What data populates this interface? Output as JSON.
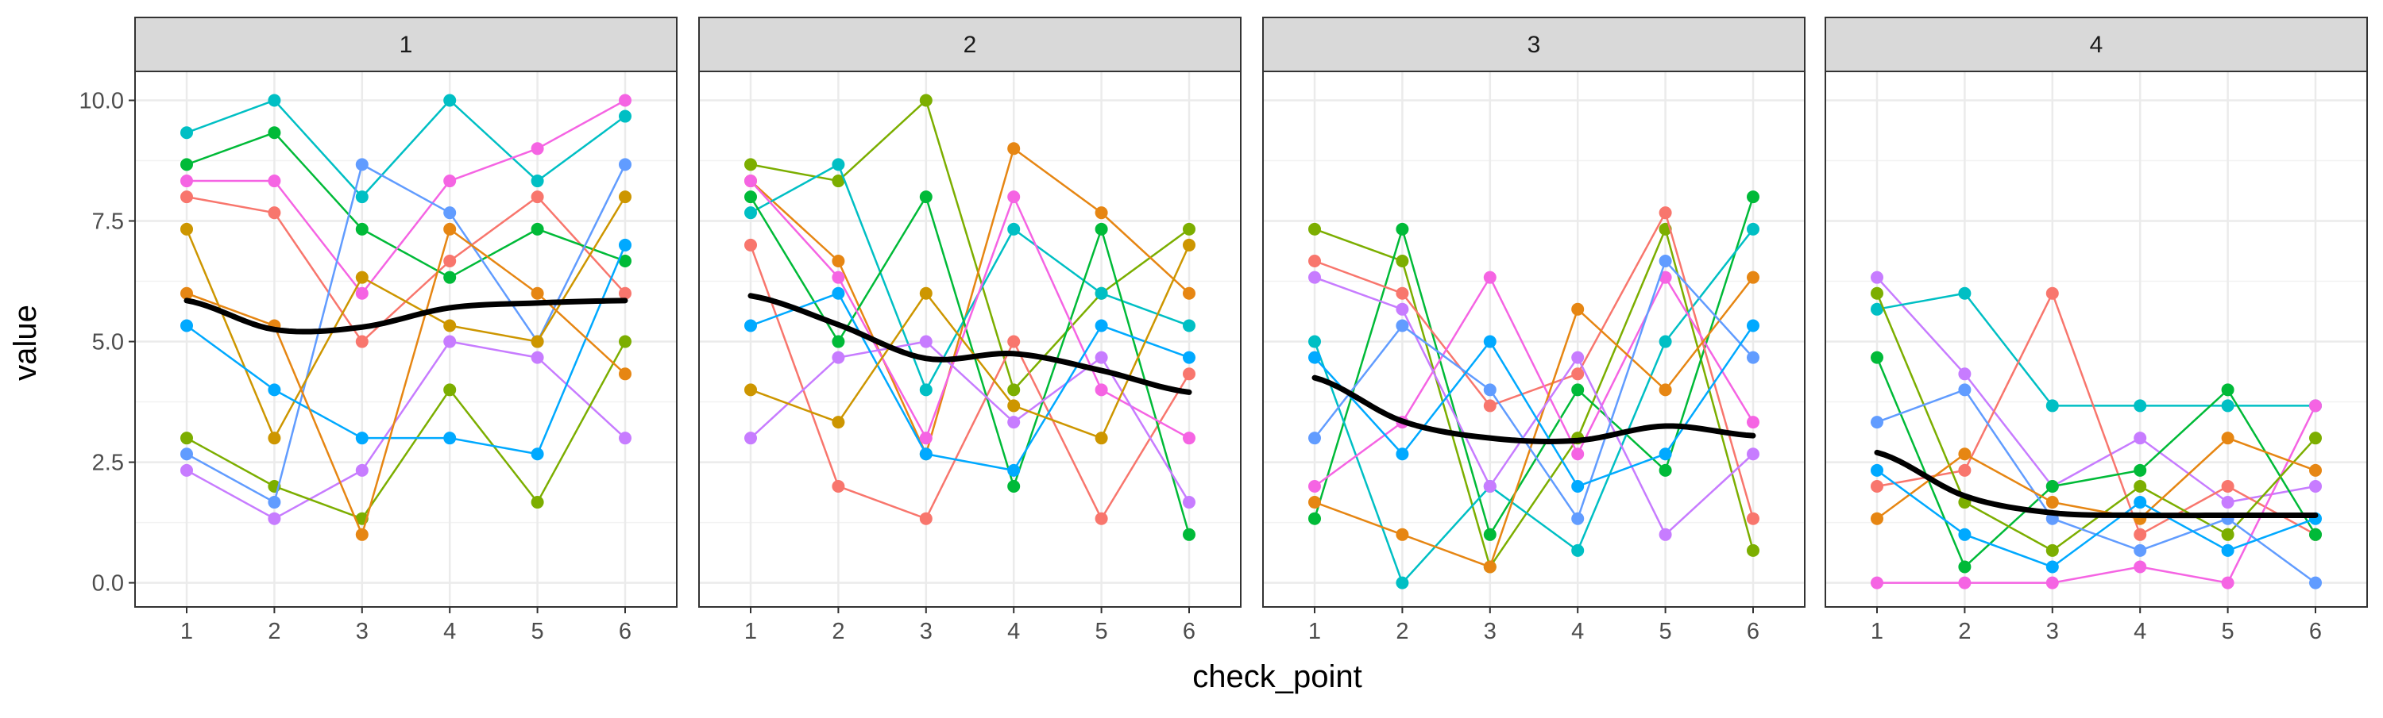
{
  "chart_data": {
    "type": "line",
    "facet_var": "panel",
    "panels": [
      "1",
      "2",
      "3",
      "4"
    ],
    "x": [
      1,
      2,
      3,
      4,
      5,
      6
    ],
    "xlabel": "check_point",
    "ylabel": "value",
    "ylim": [
      -0.5,
      10.6
    ],
    "y_ticks": [
      "0.0",
      "2.5",
      "5.0",
      "7.5",
      "10.0"
    ],
    "x_ticks": [
      "1",
      "2",
      "3",
      "4",
      "5",
      "6"
    ],
    "grid": true,
    "legend": "none",
    "smooth": [
      {
        "panel": "1",
        "values": [
          5.85,
          5.25,
          5.3,
          5.7,
          5.8,
          5.85
        ]
      },
      {
        "panel": "2",
        "values": [
          5.95,
          5.35,
          4.65,
          4.75,
          4.4,
          3.95
        ]
      },
      {
        "panel": "3",
        "values": [
          4.25,
          3.35,
          3.0,
          2.95,
          3.25,
          3.05
        ]
      },
      {
        "panel": "4",
        "values": [
          2.7,
          1.8,
          1.45,
          1.4,
          1.4,
          1.4
        ]
      }
    ],
    "individual_lines": [
      {
        "panel": "1",
        "color": "#f8766d",
        "values": [
          8.0,
          7.67,
          5.0,
          6.67,
          8.0,
          6.0
        ]
      },
      {
        "panel": "1",
        "color": "#00bfc4",
        "values": [
          9.33,
          10.0,
          8.0,
          10.0,
          8.33,
          9.67
        ]
      },
      {
        "panel": "1",
        "color": "#00ba38",
        "values": [
          8.67,
          9.33,
          7.33,
          6.33,
          7.33,
          6.67
        ]
      },
      {
        "panel": "1",
        "color": "#c77cff",
        "values": [
          2.33,
          1.33,
          2.33,
          5.0,
          4.67,
          3.0
        ]
      },
      {
        "panel": "1",
        "color": "#f564e3",
        "values": [
          8.33,
          8.33,
          6.0,
          8.33,
          9.0,
          10.0
        ]
      },
      {
        "panel": "1",
        "color": "#7cae00",
        "values": [
          3.0,
          2.0,
          1.33,
          4.0,
          1.67,
          5.0
        ]
      },
      {
        "panel": "1",
        "color": "#619cff",
        "values": [
          2.67,
          1.67,
          8.67,
          7.67,
          5.0,
          8.67
        ]
      },
      {
        "panel": "1",
        "color": "#cd9600",
        "values": [
          7.33,
          3.0,
          6.33,
          5.33,
          5.0,
          8.0
        ]
      },
      {
        "panel": "1",
        "color": "#00a9ff",
        "values": [
          5.33,
          4.0,
          3.0,
          3.0,
          2.67,
          7.0
        ]
      },
      {
        "panel": "1",
        "color": "#e68613",
        "values": [
          6.0,
          5.33,
          1.0,
          7.33,
          6.0,
          4.33
        ]
      },
      {
        "panel": "2",
        "color": "#7cae00",
        "values": [
          8.67,
          8.33,
          10.0,
          4.0,
          6.0,
          7.33
        ]
      },
      {
        "panel": "2",
        "color": "#e68613",
        "values": [
          8.33,
          6.67,
          2.67,
          9.0,
          7.67,
          6.0
        ]
      },
      {
        "panel": "2",
        "color": "#00bfc4",
        "values": [
          7.67,
          8.67,
          4.0,
          7.33,
          6.0,
          5.33
        ]
      },
      {
        "panel": "2",
        "color": "#f8766d",
        "values": [
          7.0,
          2.0,
          1.33,
          5.0,
          1.33,
          4.33
        ]
      },
      {
        "panel": "2",
        "color": "#00ba38",
        "values": [
          8.0,
          5.0,
          8.0,
          2.0,
          7.33,
          1.0
        ]
      },
      {
        "panel": "2",
        "color": "#f564e3",
        "values": [
          8.33,
          6.33,
          3.0,
          8.0,
          4.0,
          3.0
        ]
      },
      {
        "panel": "2",
        "color": "#c77cff",
        "values": [
          3.0,
          4.67,
          5.0,
          3.33,
          4.67,
          1.67
        ]
      },
      {
        "panel": "2",
        "color": "#00a9ff",
        "values": [
          5.33,
          6.0,
          2.67,
          2.33,
          5.33,
          4.67
        ]
      },
      {
        "panel": "2",
        "color": "#cd9600",
        "values": [
          4.0,
          3.33,
          6.0,
          3.67,
          3.0,
          7.0
        ]
      },
      {
        "panel": "3",
        "color": "#7cae00",
        "values": [
          7.33,
          6.67,
          0.33,
          3.0,
          7.33,
          0.67
        ]
      },
      {
        "panel": "3",
        "color": "#00ba38",
        "values": [
          1.33,
          7.33,
          1.0,
          4.0,
          2.33,
          8.0
        ]
      },
      {
        "panel": "3",
        "color": "#00bfc4",
        "values": [
          5.0,
          0.0,
          2.0,
          0.67,
          5.0,
          7.33
        ]
      },
      {
        "panel": "3",
        "color": "#f8766d",
        "values": [
          6.67,
          6.0,
          3.67,
          4.33,
          7.67,
          1.33
        ]
      },
      {
        "panel": "3",
        "color": "#f564e3",
        "values": [
          2.0,
          3.33,
          6.33,
          2.67,
          6.33,
          3.33
        ]
      },
      {
        "panel": "3",
        "color": "#e68613",
        "values": [
          1.67,
          1.0,
          0.33,
          5.67,
          4.0,
          6.33
        ]
      },
      {
        "panel": "3",
        "color": "#c77cff",
        "values": [
          6.33,
          5.67,
          2.0,
          4.67,
          1.0,
          2.67
        ]
      },
      {
        "panel": "3",
        "color": "#619cff",
        "values": [
          3.0,
          5.33,
          4.0,
          1.33,
          6.67,
          4.67
        ]
      },
      {
        "panel": "3",
        "color": "#00a9ff",
        "values": [
          4.67,
          2.67,
          5.0,
          2.0,
          2.67,
          5.33
        ]
      },
      {
        "panel": "4",
        "color": "#c77cff",
        "values": [
          6.33,
          4.33,
          2.0,
          3.0,
          1.67,
          2.0
        ]
      },
      {
        "panel": "4",
        "color": "#00bfc4",
        "values": [
          5.67,
          6.0,
          3.67,
          3.67,
          3.67,
          3.67
        ]
      },
      {
        "panel": "4",
        "color": "#f8766d",
        "values": [
          2.0,
          2.33,
          6.0,
          1.0,
          2.0,
          1.0
        ]
      },
      {
        "panel": "4",
        "color": "#f564e3",
        "values": [
          0.0,
          0.0,
          0.0,
          0.33,
          0.0,
          3.67
        ]
      },
      {
        "panel": "4",
        "color": "#00ba38",
        "values": [
          4.67,
          0.33,
          2.0,
          2.33,
          4.0,
          1.0
        ]
      },
      {
        "panel": "4",
        "color": "#7cae00",
        "values": [
          6.0,
          1.67,
          0.67,
          2.0,
          1.0,
          3.0
        ]
      },
      {
        "panel": "4",
        "color": "#619cff",
        "values": [
          3.33,
          4.0,
          1.33,
          0.67,
          1.33,
          0.0
        ]
      },
      {
        "panel": "4",
        "color": "#e68613",
        "values": [
          1.33,
          2.67,
          1.67,
          1.33,
          3.0,
          2.33
        ]
      },
      {
        "panel": "4",
        "color": "#00a9ff",
        "values": [
          2.33,
          1.0,
          0.33,
          1.67,
          0.67,
          1.33
        ]
      }
    ]
  }
}
